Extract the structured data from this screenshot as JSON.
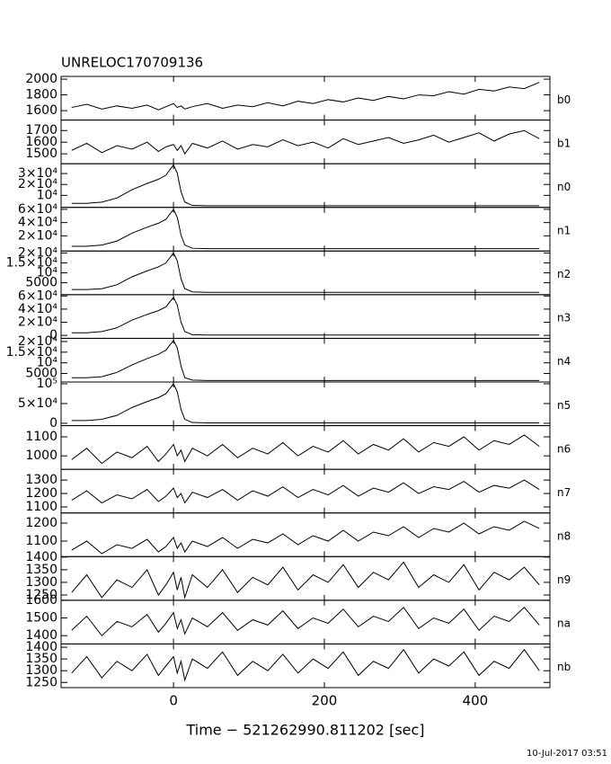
{
  "title": "UNRELOC170709136",
  "timestamp": "10-Jul-2017 03:51",
  "x_axis": {
    "label": "Time − 521262990.811202 [sec]",
    "xlim": [
      -149,
      499
    ],
    "xticks": [
      0,
      200,
      400
    ],
    "x": [
      -135,
      -115,
      -95,
      -75,
      -55,
      -35,
      -20,
      -10,
      0,
      5,
      10,
      15,
      25,
      45,
      65,
      85,
      105,
      125,
      145,
      165,
      185,
      205,
      225,
      245,
      265,
      285,
      305,
      325,
      345,
      365,
      385,
      405,
      425,
      445,
      465,
      485
    ]
  },
  "chart_data": [
    {
      "type": "line",
      "label": "b0",
      "ylim": [
        1480,
        2035
      ],
      "yticks": [
        1600,
        1800,
        2000
      ],
      "values": [
        1640,
        1680,
        1620,
        1660,
        1630,
        1670,
        1610,
        1650,
        1690,
        1640,
        1660,
        1620,
        1650,
        1690,
        1630,
        1670,
        1650,
        1700,
        1660,
        1720,
        1690,
        1740,
        1710,
        1760,
        1730,
        1780,
        1750,
        1800,
        1790,
        1840,
        1810,
        1870,
        1850,
        1900,
        1880,
        1960
      ]
    },
    {
      "type": "line",
      "label": "b1",
      "ylim": [
        1415,
        1790
      ],
      "yticks": [
        1500,
        1600,
        1700
      ],
      "values": [
        1530,
        1590,
        1510,
        1570,
        1540,
        1600,
        1520,
        1560,
        1580,
        1530,
        1570,
        1500,
        1590,
        1550,
        1610,
        1540,
        1580,
        1560,
        1620,
        1570,
        1600,
        1550,
        1630,
        1580,
        1610,
        1640,
        1590,
        1620,
        1660,
        1600,
        1640,
        1680,
        1610,
        1670,
        1700,
        1630
      ]
    },
    {
      "type": "line",
      "label": "n0",
      "ylim": [
        -1000,
        39000
      ],
      "yticks": [
        {
          "value": 10000,
          "label": "10⁴"
        },
        {
          "value": 20000,
          "label": "2×10⁴"
        },
        {
          "value": 30000,
          "label": "3×10⁴"
        }
      ],
      "values": [
        2700,
        2700,
        3800,
        7600,
        15200,
        20900,
        24700,
        28500,
        38000,
        30400,
        13300,
        3800,
        800,
        500,
        500,
        500,
        500,
        500,
        500,
        500,
        500,
        500,
        500,
        500,
        500,
        500,
        500,
        500,
        500,
        500,
        500,
        500,
        500,
        500,
        500,
        500
      ]
    },
    {
      "type": "line",
      "label": "n1",
      "ylim": [
        -3000,
        63000
      ],
      "yticks": [
        {
          "value": 20000,
          "label": "2×10⁴"
        },
        {
          "value": 40000,
          "label": "4×10⁴"
        },
        {
          "value": 60000,
          "label": "6×10⁴"
        }
      ],
      "values": [
        4200,
        4200,
        6000,
        12000,
        24000,
        33000,
        39000,
        45000,
        60000,
        48000,
        21000,
        6000,
        1200,
        600,
        600,
        600,
        600,
        600,
        600,
        600,
        600,
        600,
        600,
        600,
        600,
        600,
        600,
        600,
        600,
        600,
        600,
        600,
        600,
        600,
        600,
        600
      ]
    },
    {
      "type": "line",
      "label": "n2",
      "ylim": [
        -1000,
        21000
      ],
      "yticks": [
        5000,
        {
          "value": 10000,
          "label": "10⁴"
        },
        {
          "value": 15000,
          "label": "1.5×10⁴"
        },
        {
          "value": 20000,
          "label": "2×10⁴"
        }
      ],
      "values": [
        1600,
        1600,
        2000,
        4000,
        8000,
        11000,
        13000,
        15000,
        20000,
        16000,
        7000,
        2000,
        400,
        200,
        200,
        200,
        200,
        200,
        200,
        200,
        200,
        200,
        200,
        200,
        200,
        200,
        200,
        200,
        200,
        200,
        200,
        200,
        200,
        200,
        200,
        200
      ]
    },
    {
      "type": "line",
      "label": "n3",
      "ylim": [
        -4500,
        62000
      ],
      "yticks": [
        0,
        {
          "value": 20000,
          "label": "2×10⁴"
        },
        {
          "value": 40000,
          "label": "4×10⁴"
        },
        {
          "value": 60000,
          "label": "6×10⁴"
        }
      ],
      "values": [
        4000,
        4000,
        5800,
        11600,
        23200,
        31900,
        37700,
        43500,
        58000,
        46400,
        20300,
        5800,
        1100,
        500,
        500,
        500,
        500,
        500,
        500,
        500,
        500,
        500,
        500,
        500,
        500,
        500,
        500,
        500,
        500,
        500,
        500,
        500,
        500,
        500,
        500,
        500
      ]
    },
    {
      "type": "line",
      "label": "n4",
      "ylim": [
        1000,
        21500
      ],
      "yticks": [
        5000,
        {
          "value": 10000,
          "label": "10⁴"
        },
        {
          "value": 15000,
          "label": "1.5×10⁴"
        },
        {
          "value": 20000,
          "label": "2×10⁴"
        }
      ],
      "values": [
        3000,
        3000,
        3500,
        5500,
        9000,
        12000,
        14000,
        16000,
        20500,
        17000,
        8500,
        3000,
        1900,
        1700,
        1700,
        1700,
        1700,
        1700,
        1700,
        1700,
        1700,
        1700,
        1700,
        1700,
        1700,
        1700,
        1700,
        1700,
        1700,
        1700,
        1700,
        1700,
        1700,
        1700,
        1700,
        1700
      ]
    },
    {
      "type": "line",
      "label": "n5",
      "ylim": [
        -6000,
        104500
      ],
      "yticks": [
        0,
        {
          "value": 50000,
          "label": "5×10⁴"
        },
        {
          "value": 100000,
          "label": "10⁵"
        }
      ],
      "values": [
        7000,
        7000,
        10000,
        20000,
        40000,
        55000,
        65000,
        75000,
        100000,
        80000,
        35000,
        10000,
        2000,
        1000,
        1000,
        1000,
        1000,
        1000,
        1000,
        1000,
        1000,
        1000,
        1000,
        1000,
        1000,
        1000,
        1000,
        1000,
        1000,
        1000,
        1000,
        1000,
        1000,
        1000,
        1000,
        1000
      ]
    },
    {
      "type": "line",
      "label": "n6",
      "ylim": [
        929,
        1159
      ],
      "yticks": [
        1000,
        1100
      ],
      "values": [
        980,
        1040,
        960,
        1020,
        990,
        1050,
        970,
        1010,
        1060,
        1000,
        1030,
        970,
        1040,
        1000,
        1060,
        990,
        1040,
        1010,
        1070,
        1000,
        1050,
        1020,
        1080,
        1010,
        1060,
        1030,
        1090,
        1020,
        1070,
        1050,
        1100,
        1030,
        1080,
        1060,
        1110,
        1050
      ]
    },
    {
      "type": "line",
      "label": "n7",
      "ylim": [
        1055,
        1380
      ],
      "yticks": [
        1100,
        1200,
        1300
      ],
      "values": [
        1150,
        1220,
        1130,
        1190,
        1160,
        1230,
        1140,
        1180,
        1240,
        1170,
        1200,
        1130,
        1210,
        1170,
        1230,
        1150,
        1220,
        1180,
        1250,
        1170,
        1230,
        1190,
        1260,
        1180,
        1240,
        1210,
        1280,
        1200,
        1250,
        1230,
        1290,
        1210,
        1260,
        1240,
        1300,
        1230
      ]
    },
    {
      "type": "line",
      "label": "n8",
      "ylim": [
        1014,
        1256
      ],
      "yticks": [
        1100,
        1200
      ],
      "values": [
        1050,
        1100,
        1030,
        1080,
        1060,
        1110,
        1040,
        1070,
        1120,
        1060,
        1090,
        1040,
        1100,
        1070,
        1120,
        1060,
        1110,
        1090,
        1140,
        1080,
        1130,
        1100,
        1160,
        1100,
        1150,
        1130,
        1180,
        1120,
        1170,
        1150,
        1200,
        1140,
        1180,
        1160,
        1210,
        1170
      ]
    },
    {
      "type": "line",
      "label": "n9",
      "ylim": [
        1229,
        1402
      ],
      "yticks": [
        1250,
        1300,
        1350,
        1400
      ],
      "values": [
        1260,
        1330,
        1240,
        1310,
        1280,
        1350,
        1250,
        1290,
        1340,
        1270,
        1320,
        1240,
        1330,
        1280,
        1350,
        1260,
        1320,
        1290,
        1360,
        1270,
        1330,
        1300,
        1370,
        1280,
        1340,
        1310,
        1380,
        1280,
        1330,
        1300,
        1370,
        1270,
        1340,
        1310,
        1360,
        1290
      ]
    },
    {
      "type": "line",
      "label": "na",
      "ylim": [
        1353,
        1600
      ],
      "yticks": [
        1400,
        1500,
        1600
      ],
      "values": [
        1430,
        1510,
        1400,
        1480,
        1450,
        1520,
        1420,
        1470,
        1530,
        1440,
        1490,
        1410,
        1500,
        1450,
        1530,
        1430,
        1490,
        1460,
        1540,
        1440,
        1500,
        1470,
        1550,
        1450,
        1510,
        1480,
        1560,
        1440,
        1500,
        1470,
        1550,
        1430,
        1510,
        1480,
        1560,
        1460
      ]
    },
    {
      "type": "line",
      "label": "nb",
      "ylim": [
        1228,
        1414
      ],
      "yticks": [
        1250,
        1300,
        1350,
        1400
      ],
      "values": [
        1290,
        1360,
        1270,
        1340,
        1300,
        1370,
        1280,
        1320,
        1360,
        1290,
        1340,
        1260,
        1350,
        1310,
        1380,
        1280,
        1340,
        1300,
        1370,
        1290,
        1350,
        1310,
        1380,
        1280,
        1340,
        1310,
        1390,
        1290,
        1350,
        1320,
        1380,
        1280,
        1340,
        1310,
        1390,
        1300
      ]
    }
  ]
}
